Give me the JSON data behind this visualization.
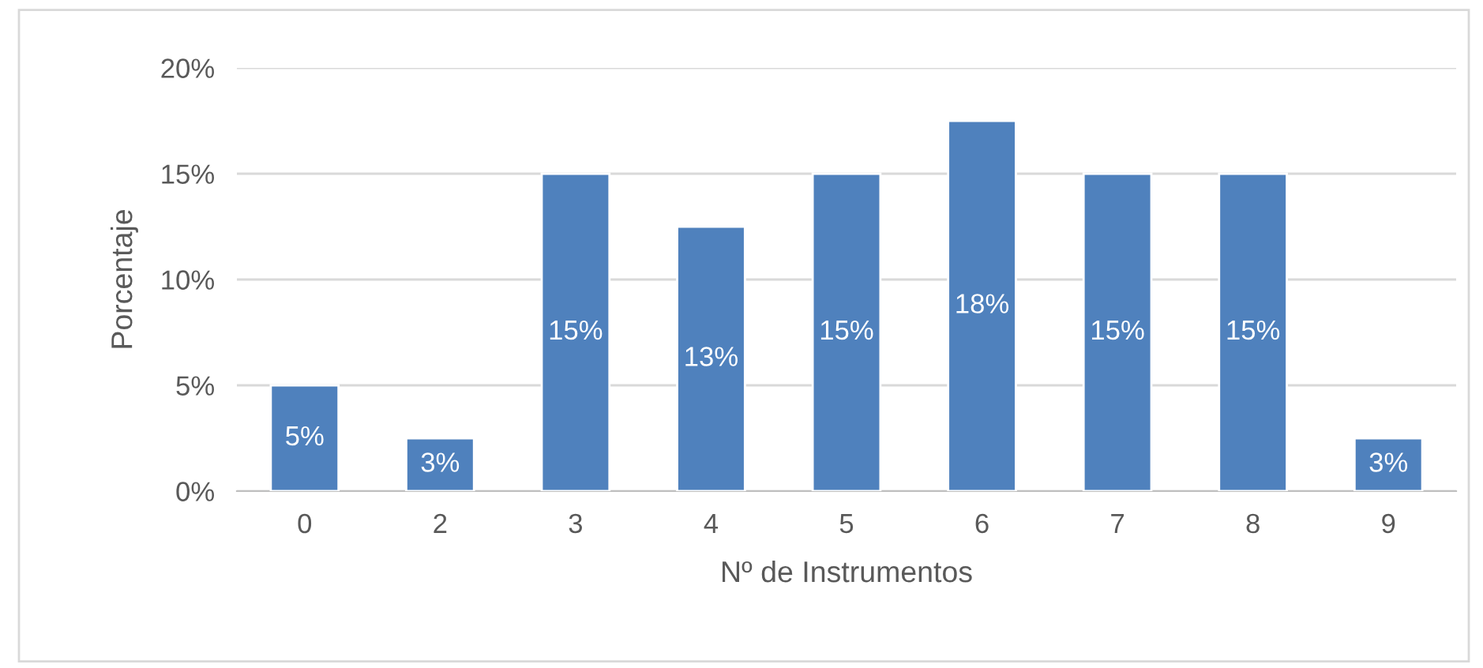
{
  "chart_data": {
    "type": "bar",
    "xlabel": "Nº de Instrumentos",
    "ylabel": "Porcentaje",
    "categories": [
      "0",
      "2",
      "3",
      "4",
      "5",
      "6",
      "7",
      "8",
      "9"
    ],
    "values": [
      5,
      2.5,
      15,
      12.5,
      15,
      17.5,
      15,
      15,
      2.5
    ],
    "value_labels": [
      "5%",
      "3%",
      "15%",
      "13%",
      "15%",
      "18%",
      "15%",
      "15%",
      "3%"
    ],
    "color": "#4f81bd",
    "ylim": [
      0,
      20
    ],
    "yticks": [
      {
        "value": 0,
        "label": "0%"
      },
      {
        "value": 5,
        "label": "5%"
      },
      {
        "value": 10,
        "label": "10%"
      },
      {
        "value": 15,
        "label": "15%"
      },
      {
        "value": 20,
        "label": "20%"
      }
    ],
    "grid": "y",
    "legend": false
  }
}
